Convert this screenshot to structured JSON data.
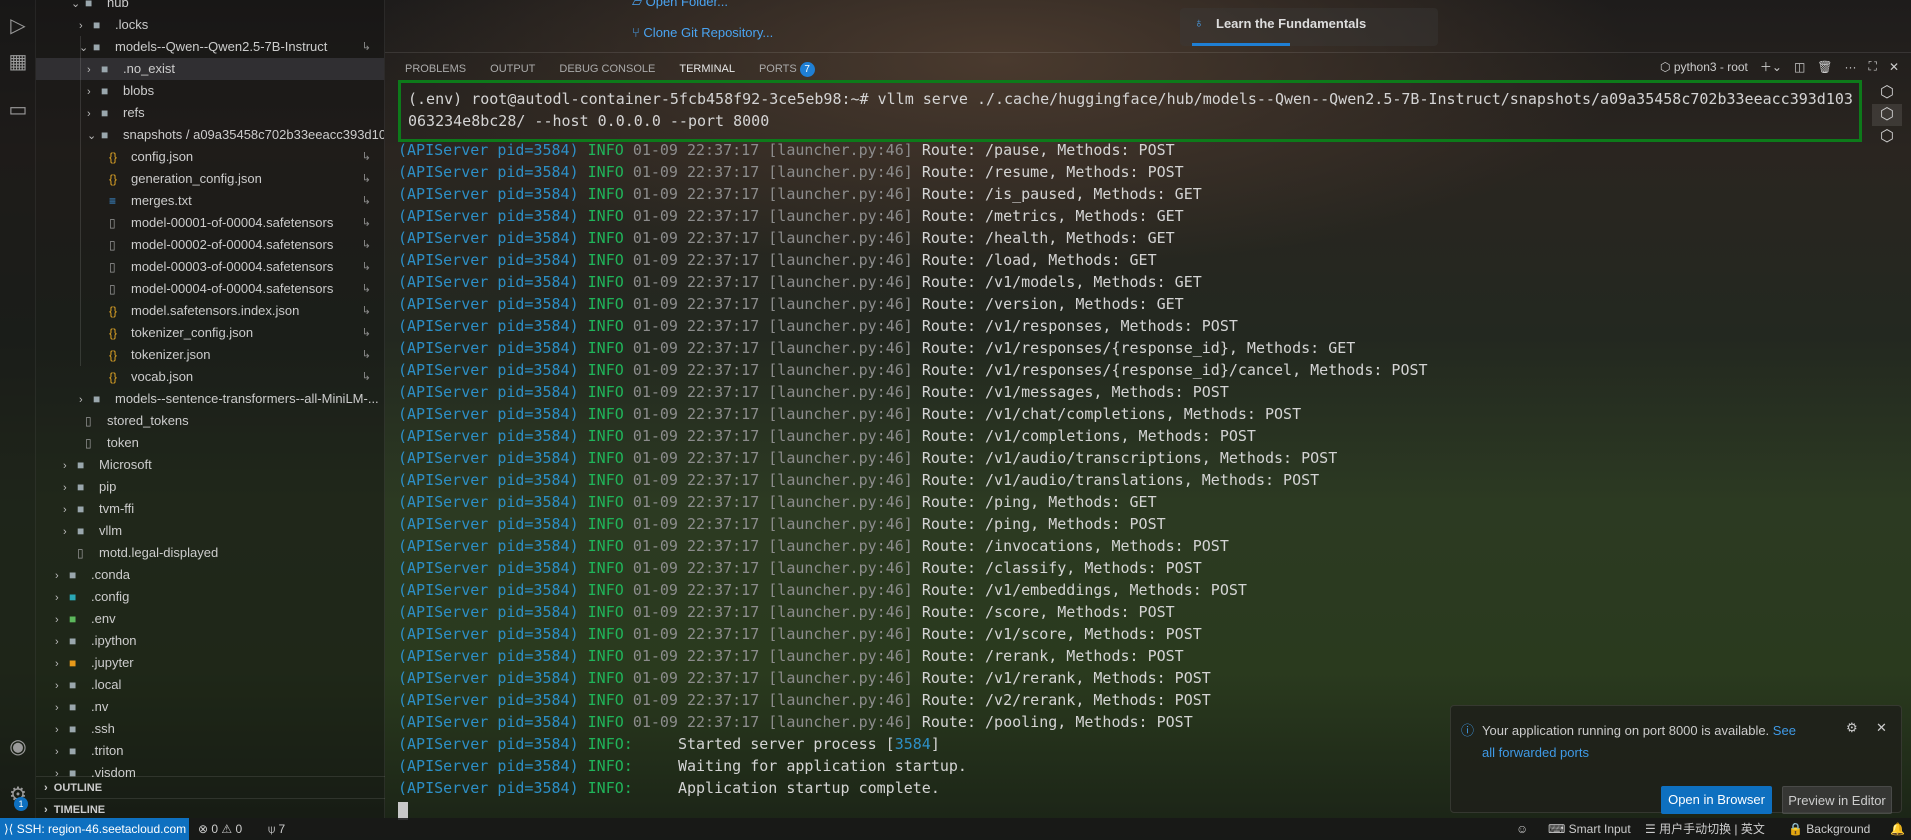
{
  "activity_bar": {
    "items": [
      "run-debug-icon",
      "extensions-icon",
      "remote-explorer-icon"
    ],
    "bottom": [
      "account-icon",
      "settings-gear-icon"
    ],
    "settings_badge": "1"
  },
  "explorer": {
    "rows": [
      {
        "label": "hub",
        "depth": 2,
        "kind": "folder",
        "open": true
      },
      {
        "label": ".locks",
        "depth": 3,
        "kind": "folder"
      },
      {
        "label": "models--Qwen--Qwen2.5-7B-Instruct",
        "depth": 3,
        "kind": "folder",
        "open": true,
        "link": true
      },
      {
        "label": ".no_exist",
        "depth": 4,
        "kind": "folder",
        "selected": true
      },
      {
        "label": "blobs",
        "depth": 4,
        "kind": "folder"
      },
      {
        "label": "refs",
        "depth": 4,
        "kind": "folder"
      },
      {
        "label": "snapshots / a09a35458c702b33eeacc393d10...",
        "depth": 4,
        "kind": "folder",
        "open": true
      },
      {
        "label": "config.json",
        "depth": 5,
        "kind": "json",
        "link": true
      },
      {
        "label": "generation_config.json",
        "depth": 5,
        "kind": "json",
        "link": true
      },
      {
        "label": "merges.txt",
        "depth": 5,
        "kind": "txt",
        "link": true
      },
      {
        "label": "model-00001-of-00004.safetensors",
        "depth": 5,
        "kind": "file",
        "link": true
      },
      {
        "label": "model-00002-of-00004.safetensors",
        "depth": 5,
        "kind": "file",
        "link": true
      },
      {
        "label": "model-00003-of-00004.safetensors",
        "depth": 5,
        "kind": "file",
        "link": true
      },
      {
        "label": "model-00004-of-00004.safetensors",
        "depth": 5,
        "kind": "file",
        "link": true
      },
      {
        "label": "model.safetensors.index.json",
        "depth": 5,
        "kind": "json",
        "link": true
      },
      {
        "label": "tokenizer_config.json",
        "depth": 5,
        "kind": "json",
        "link": true
      },
      {
        "label": "tokenizer.json",
        "depth": 5,
        "kind": "json",
        "link": true
      },
      {
        "label": "vocab.json",
        "depth": 5,
        "kind": "json",
        "link": true
      },
      {
        "label": "models--sentence-transformers--all-MiniLM-...",
        "depth": 3,
        "kind": "folder"
      },
      {
        "label": "stored_tokens",
        "depth": 2,
        "kind": "file"
      },
      {
        "label": "token",
        "depth": 2,
        "kind": "file"
      },
      {
        "label": "Microsoft",
        "depth": 1,
        "kind": "folder"
      },
      {
        "label": "pip",
        "depth": 1,
        "kind": "folder"
      },
      {
        "label": "tvm-ffi",
        "depth": 1,
        "kind": "folder"
      },
      {
        "label": "vllm",
        "depth": 1,
        "kind": "folder"
      },
      {
        "label": "motd.legal-displayed",
        "depth": 1,
        "kind": "file"
      },
      {
        "label": ".conda",
        "depth": 0,
        "kind": "folder"
      },
      {
        "label": ".config",
        "depth": 0,
        "kind": "folder-config"
      },
      {
        "label": ".env",
        "depth": 0,
        "kind": "folder-env"
      },
      {
        "label": ".ipython",
        "depth": 0,
        "kind": "folder"
      },
      {
        "label": ".jupyter",
        "depth": 0,
        "kind": "folder-jupyter"
      },
      {
        "label": ".local",
        "depth": 0,
        "kind": "folder"
      },
      {
        "label": ".nv",
        "depth": 0,
        "kind": "folder"
      },
      {
        "label": ".ssh",
        "depth": 0,
        "kind": "folder"
      },
      {
        "label": ".triton",
        "depth": 0,
        "kind": "folder"
      },
      {
        "label": ".visdom",
        "depth": 0,
        "kind": "folder"
      }
    ],
    "outline": "OUTLINE",
    "timeline": "TIMELINE"
  },
  "welcome": {
    "open_folder": "Open Folder...",
    "clone_repo": "Clone Git Repository...",
    "learn": "Learn the Fundamentals",
    "learn_progress": 0.38
  },
  "panel": {
    "tabs": [
      {
        "label": "PROBLEMS"
      },
      {
        "label": "OUTPUT"
      },
      {
        "label": "DEBUG CONSOLE"
      },
      {
        "label": "TERMINAL",
        "active": true
      },
      {
        "label": "PORTS",
        "badge": "7"
      }
    ],
    "terminal_name": "python3 - root"
  },
  "terminal": {
    "command_line_1": "(.env) root@autodl-container-5fcb458f92-3ce5eb98:~# vllm serve ./.cache/huggingface/hub/models--Qwen--Qwen2.5-7B-Instruct/snapshots/a09a35458c702b33eeacc393d103",
    "command_line_2": "063234e8bc28/ --host 0.0.0.0 --port 8000",
    "prefix": "(APIServer pid=3584)",
    "level": "INFO",
    "timestamp": "01-09 22:37:17",
    "source": "[launcher.py:46]",
    "routes": [
      "Route: /pause, Methods: POST",
      "Route: /resume, Methods: POST",
      "Route: /is_paused, Methods: GET",
      "Route: /metrics, Methods: GET",
      "Route: /health, Methods: GET",
      "Route: /load, Methods: GET",
      "Route: /v1/models, Methods: GET",
      "Route: /version, Methods: GET",
      "Route: /v1/responses, Methods: POST",
      "Route: /v1/responses/{response_id}, Methods: GET",
      "Route: /v1/responses/{response_id}/cancel, Methods: POST",
      "Route: /v1/messages, Methods: POST",
      "Route: /v1/chat/completions, Methods: POST",
      "Route: /v1/completions, Methods: POST",
      "Route: /v1/audio/transcriptions, Methods: POST",
      "Route: /v1/audio/translations, Methods: POST",
      "Route: /ping, Methods: GET",
      "Route: /ping, Methods: POST",
      "Route: /invocations, Methods: POST",
      "Route: /classify, Methods: POST",
      "Route: /v1/embeddings, Methods: POST",
      "Route: /score, Methods: POST",
      "Route: /v1/score, Methods: POST",
      "Route: /rerank, Methods: POST",
      "Route: /v1/rerank, Methods: POST",
      "Route: /v2/rerank, Methods: POST",
      "Route: /pooling, Methods: POST"
    ],
    "startup": [
      {
        "level": "INFO:",
        "text": "Started server process [",
        "pid": "3584",
        "end": "]"
      },
      {
        "level": "INFO:",
        "text": "Waiting for application startup."
      },
      {
        "level": "INFO:",
        "text": "Application startup complete."
      }
    ]
  },
  "notification": {
    "message": "Your application running on port 8000 is available.",
    "link": "See all forwarded ports",
    "primary": "Open in Browser",
    "secondary": "Preview in Editor"
  },
  "status_bar": {
    "remote": "SSH: region-46.seetacloud.com",
    "errors": "0",
    "warnings": "0",
    "ports": "7",
    "smart_input": "Smart Input",
    "ime": "用户手动切换 | 英文",
    "background": "Background"
  },
  "colors": {
    "accent": "#0e70c0",
    "highlight_box": "#0d7a1a",
    "info": "#20b45a",
    "api": "#2d8fc6"
  }
}
